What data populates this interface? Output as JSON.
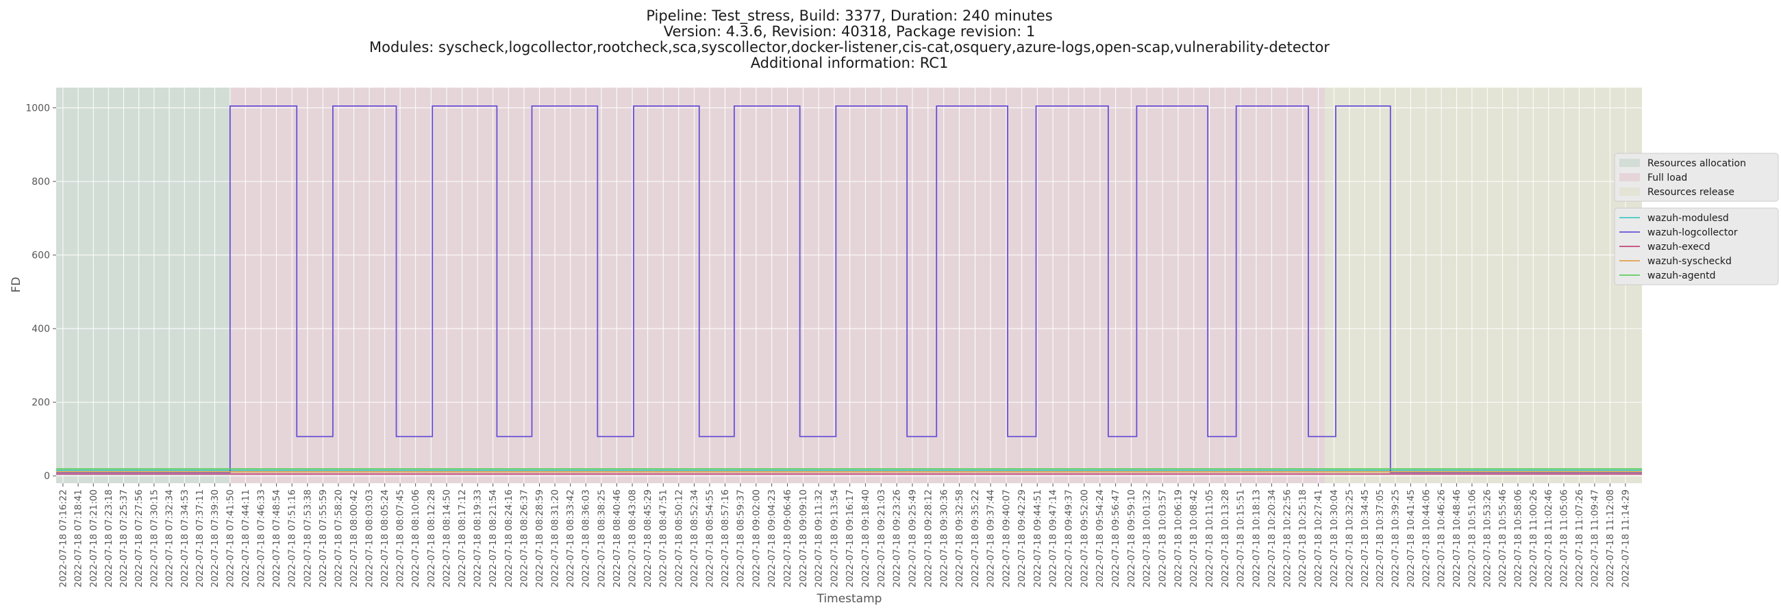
{
  "chart_data": {
    "type": "line",
    "title": [
      "Pipeline: Test_stress, Build: 3377, Duration: 240 minutes",
      "Version: 4.3.6, Revision: 40318, Package revision: 1",
      "Modules: syscheck,logcollector,rootcheck,sca,syscollector,docker-listener,cis-cat,osquery,azure-logs,open-scap,vulnerability-detector",
      "Additional information: RC1"
    ],
    "xlabel": "Timestamp",
    "ylabel": "FD",
    "ylim": [
      -20,
      1055
    ],
    "yticks": [
      0,
      200,
      400,
      600,
      800,
      1000
    ],
    "grid": true,
    "legend_position": "right",
    "x_ticks": [
      "2022-07-18 07:16:22",
      "2022-07-18 07:18:41",
      "2022-07-18 07:21:00",
      "2022-07-18 07:23:18",
      "2022-07-18 07:25:37",
      "2022-07-18 07:27:56",
      "2022-07-18 07:30:15",
      "2022-07-18 07:32:34",
      "2022-07-18 07:34:53",
      "2022-07-18 07:37:11",
      "2022-07-18 07:39:30",
      "2022-07-18 07:41:50",
      "2022-07-18 07:44:11",
      "2022-07-18 07:46:33",
      "2022-07-18 07:48:54",
      "2022-07-18 07:51:16",
      "2022-07-18 07:53:38",
      "2022-07-18 07:55:59",
      "2022-07-18 07:58:20",
      "2022-07-18 08:00:42",
      "2022-07-18 08:03:03",
      "2022-07-18 08:05:24",
      "2022-07-18 08:07:45",
      "2022-07-18 08:10:06",
      "2022-07-18 08:12:28",
      "2022-07-18 08:14:50",
      "2022-07-18 08:17:12",
      "2022-07-18 08:19:33",
      "2022-07-18 08:21:54",
      "2022-07-18 08:24:16",
      "2022-07-18 08:26:37",
      "2022-07-18 08:28:59",
      "2022-07-18 08:31:20",
      "2022-07-18 08:33:42",
      "2022-07-18 08:36:03",
      "2022-07-18 08:38:25",
      "2022-07-18 08:40:46",
      "2022-07-18 08:43:08",
      "2022-07-18 08:45:29",
      "2022-07-18 08:47:51",
      "2022-07-18 08:50:12",
      "2022-07-18 08:52:34",
      "2022-07-18 08:54:55",
      "2022-07-18 08:57:16",
      "2022-07-18 08:59:37",
      "2022-07-18 09:02:00",
      "2022-07-18 09:04:23",
      "2022-07-18 09:06:46",
      "2022-07-18 09:09:10",
      "2022-07-18 09:11:32",
      "2022-07-18 09:13:54",
      "2022-07-18 09:16:17",
      "2022-07-18 09:18:40",
      "2022-07-18 09:21:03",
      "2022-07-18 09:23:26",
      "2022-07-18 09:25:49",
      "2022-07-18 09:28:12",
      "2022-07-18 09:30:36",
      "2022-07-18 09:32:58",
      "2022-07-18 09:35:22",
      "2022-07-18 09:37:44",
      "2022-07-18 09:40:07",
      "2022-07-18 09:42:29",
      "2022-07-18 09:44:51",
      "2022-07-18 09:47:14",
      "2022-07-18 09:49:37",
      "2022-07-18 09:52:00",
      "2022-07-18 09:54:24",
      "2022-07-18 09:56:47",
      "2022-07-18 09:59:10",
      "2022-07-18 10:01:32",
      "2022-07-18 10:03:57",
      "2022-07-18 10:06:19",
      "2022-07-18 10:08:42",
      "2022-07-18 10:11:05",
      "2022-07-18 10:13:28",
      "2022-07-18 10:15:51",
      "2022-07-18 10:18:13",
      "2022-07-18 10:20:34",
      "2022-07-18 10:22:56",
      "2022-07-18 10:25:18",
      "2022-07-18 10:27:41",
      "2022-07-18 10:30:04",
      "2022-07-18 10:32:25",
      "2022-07-18 10:34:45",
      "2022-07-18 10:37:05",
      "2022-07-18 10:39:25",
      "2022-07-18 10:41:45",
      "2022-07-18 10:44:06",
      "2022-07-18 10:46:26",
      "2022-07-18 10:48:46",
      "2022-07-18 10:51:06",
      "2022-07-18 10:53:26",
      "2022-07-18 10:55:46",
      "2022-07-18 10:58:06",
      "2022-07-18 11:00:26",
      "2022-07-18 11:02:46",
      "2022-07-18 11:05:06",
      "2022-07-18 11:07:26",
      "2022-07-18 11:09:47",
      "2022-07-18 11:12:08",
      "2022-07-18 11:14:29"
    ],
    "phases": [
      {
        "name": "Resources allocation",
        "start": "2022-07-18 07:15:20",
        "end": "2022-07-18 07:41:50",
        "color": "#d2ddd6"
      },
      {
        "name": "Full load",
        "start": "2022-07-18 07:41:50",
        "end": "2022-07-18 10:28:40",
        "color": "#e5d5d9"
      },
      {
        "name": "Resources release",
        "start": "2022-07-18 10:28:40",
        "end": "2022-07-18 11:17:00",
        "color": "#e3e4d5"
      }
    ],
    "x_range": [
      "2022-07-18 07:15:20",
      "2022-07-18 11:17:00"
    ],
    "series": [
      {
        "name": "wazuh-modulesd",
        "color": "#43c7c0",
        "steps": [
          [
            "2022-07-18 07:15:20",
            15
          ],
          [
            "2022-07-18 11:17:00",
            15
          ]
        ]
      },
      {
        "name": "wazuh-logcollector",
        "color": "#6a4fd6",
        "steps": [
          [
            "2022-07-18 07:15:20",
            9
          ],
          [
            "2022-07-18 07:41:50",
            1005
          ],
          [
            "2022-07-18 07:52:00",
            107
          ],
          [
            "2022-07-18 07:57:30",
            1005
          ],
          [
            "2022-07-18 08:07:10",
            107
          ],
          [
            "2022-07-18 08:12:40",
            1005
          ],
          [
            "2022-07-18 08:22:30",
            107
          ],
          [
            "2022-07-18 08:27:50",
            1005
          ],
          [
            "2022-07-18 08:37:50",
            107
          ],
          [
            "2022-07-18 08:43:20",
            1005
          ],
          [
            "2022-07-18 08:53:20",
            107
          ],
          [
            "2022-07-18 08:58:40",
            1005
          ],
          [
            "2022-07-18 09:08:40",
            107
          ],
          [
            "2022-07-18 09:14:10",
            1005
          ],
          [
            "2022-07-18 09:25:00",
            107
          ],
          [
            "2022-07-18 09:29:30",
            1005
          ],
          [
            "2022-07-18 09:40:20",
            107
          ],
          [
            "2022-07-18 09:44:40",
            1005
          ],
          [
            "2022-07-18 09:55:40",
            107
          ],
          [
            "2022-07-18 10:00:00",
            1005
          ],
          [
            "2022-07-18 10:10:50",
            107
          ],
          [
            "2022-07-18 10:15:10",
            1005
          ],
          [
            "2022-07-18 10:26:10",
            107
          ],
          [
            "2022-07-18 10:30:20",
            1005
          ],
          [
            "2022-07-18 10:38:40",
            9
          ],
          [
            "2022-07-18 11:17:00",
            9
          ]
        ]
      },
      {
        "name": "wazuh-execd",
        "color": "#c0487a",
        "steps": [
          [
            "2022-07-18 07:15:20",
            5
          ],
          [
            "2022-07-18 11:17:00",
            5
          ]
        ]
      },
      {
        "name": "wazuh-syscheckd",
        "color": "#e0a04a",
        "steps": [
          [
            "2022-07-18 07:15:20",
            11
          ],
          [
            "2022-07-18 11:17:00",
            11
          ]
        ]
      },
      {
        "name": "wazuh-agentd",
        "color": "#5fcf5f",
        "steps": [
          [
            "2022-07-18 07:15:20",
            19
          ],
          [
            "2022-07-18 11:17:00",
            19
          ]
        ]
      }
    ]
  }
}
